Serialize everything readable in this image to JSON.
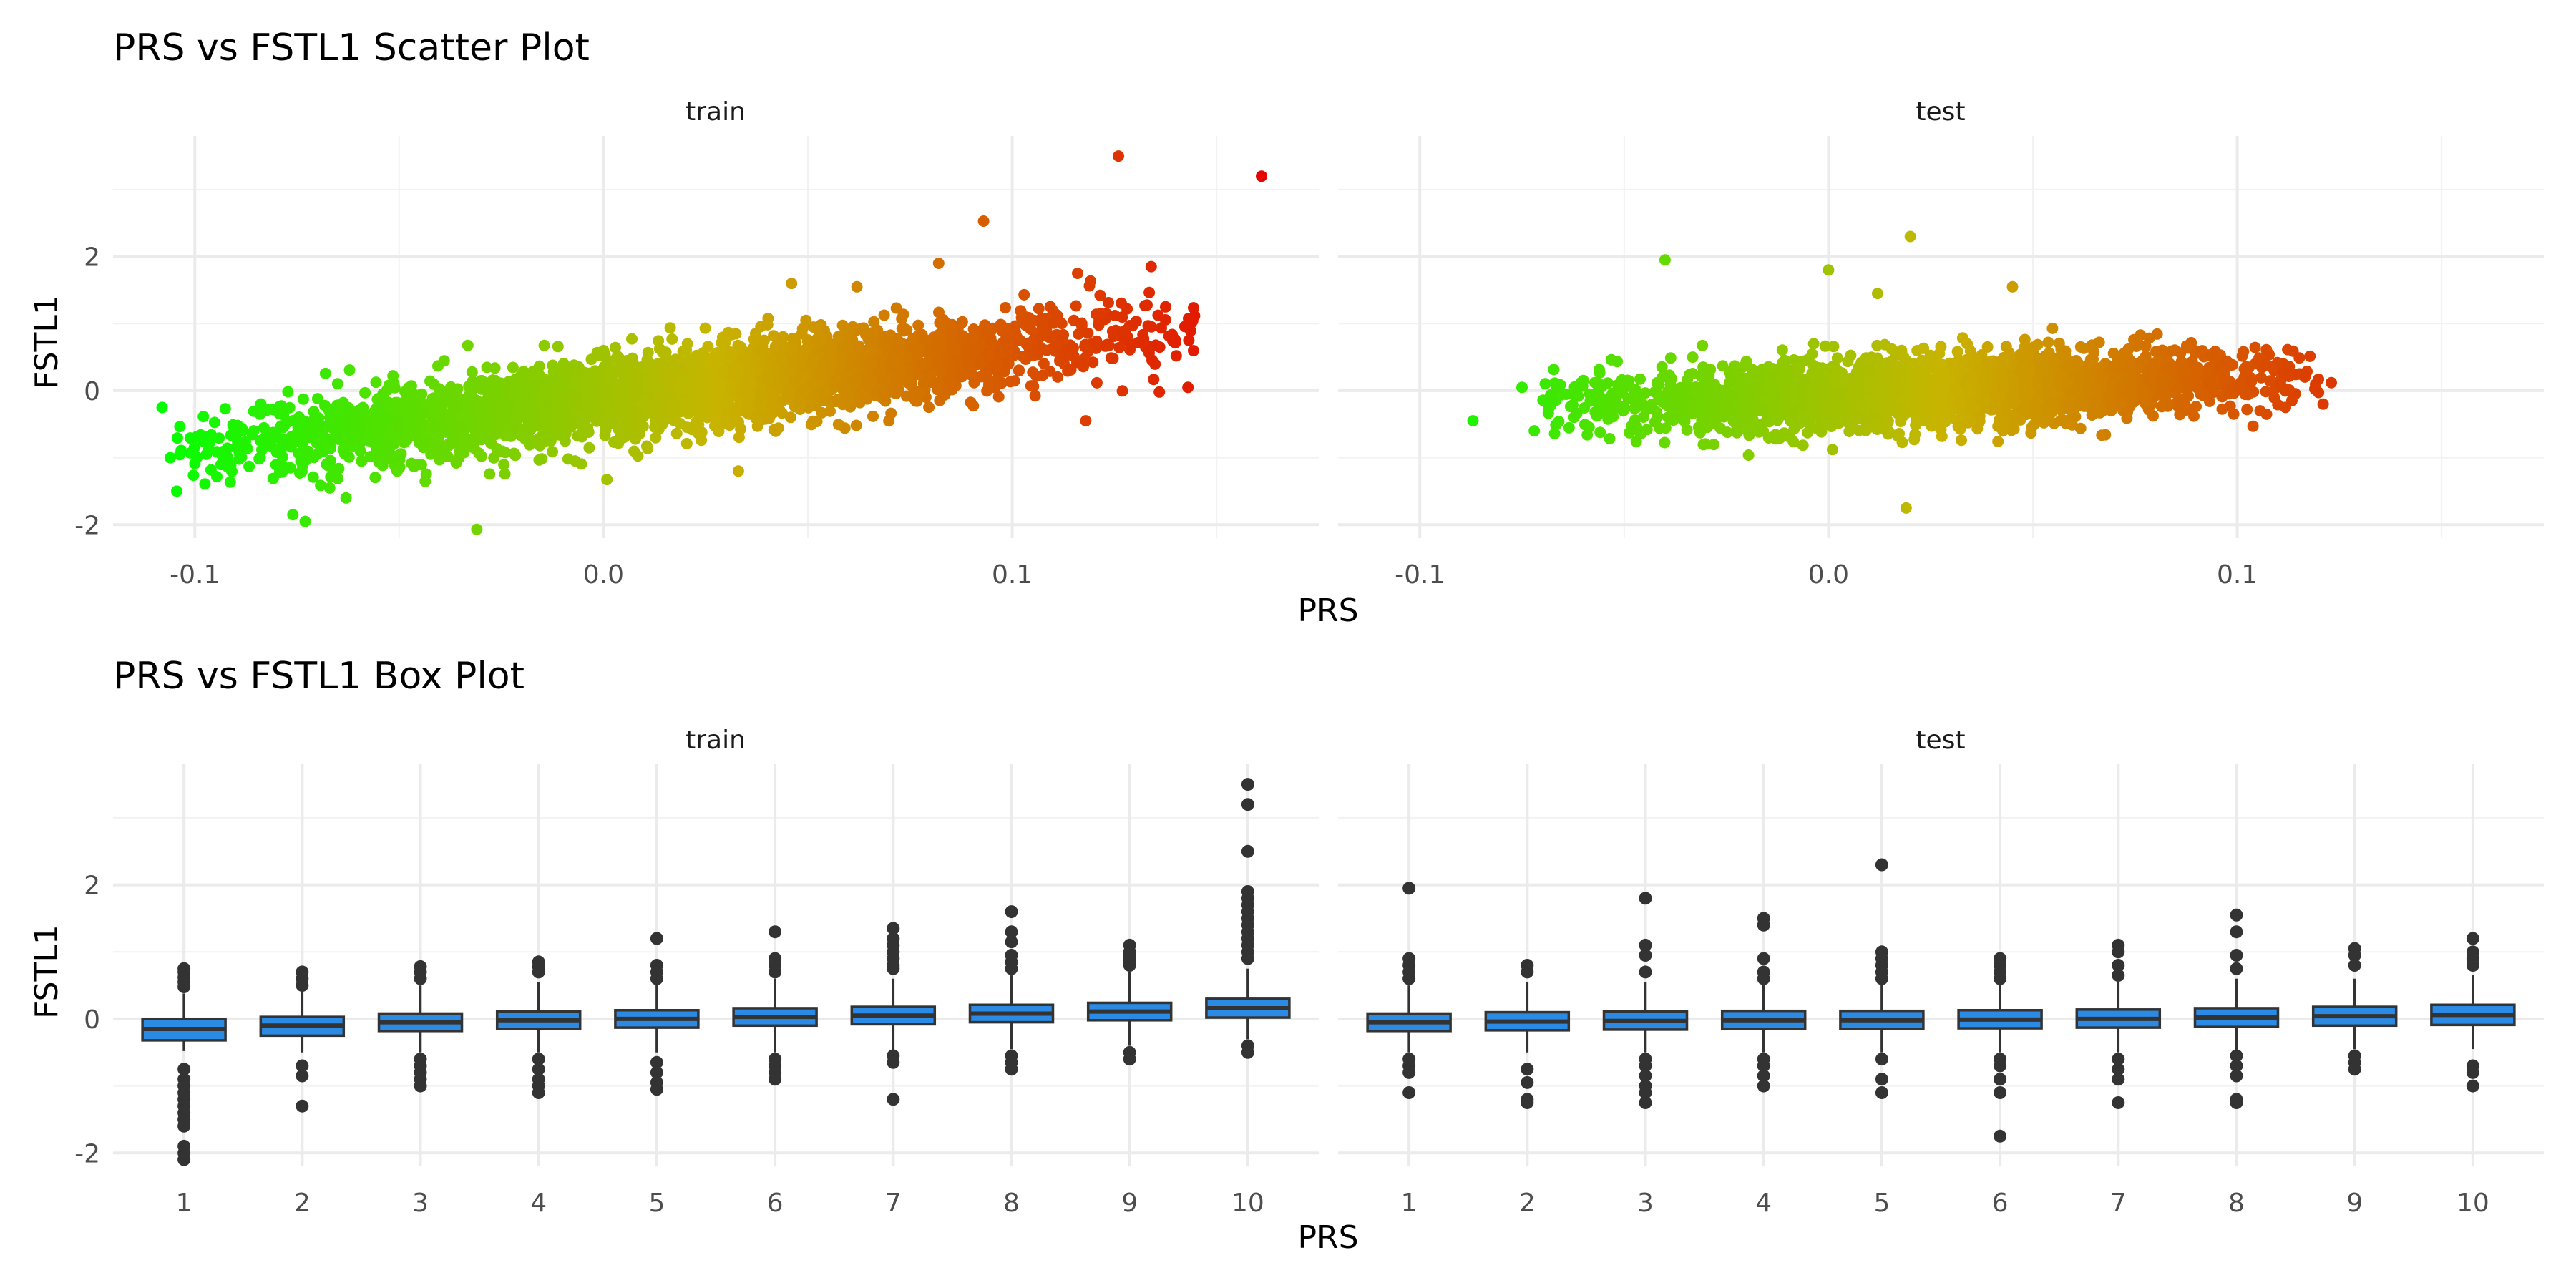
{
  "chart_data": [
    {
      "type": "scatter",
      "title": "PRS vs FSTL1 Scatter Plot",
      "xlabel": "PRS",
      "ylabel": "FSTL1",
      "xlim": [
        -0.12,
        0.175
      ],
      "ylim": [
        -2.2,
        3.8
      ],
      "x_ticks": [
        -0.1,
        0.0,
        0.1
      ],
      "x_tick_labels": [
        "-0.1",
        "0.0",
        "0.1"
      ],
      "y_ticks": [
        -2,
        0,
        2
      ],
      "y_tick_labels": [
        "-2",
        "0",
        "2"
      ],
      "color_scale": {
        "low": "#00ff00",
        "mid": "#c8b400",
        "high": "#e60000",
        "variable": "PRS"
      },
      "grid": true,
      "legend": "none",
      "facets": [
        {
          "label": "train",
          "trend": {
            "slope": 7.6,
            "intercept": -0.12,
            "noise": 0.3
          },
          "x_range": [
            -0.105,
            0.145
          ],
          "n_bulk": 3200,
          "points": [
            {
              "x": -0.108,
              "y": -0.25
            },
            {
              "x": -0.106,
              "y": -1.0
            },
            {
              "x": -0.076,
              "y": -1.85
            },
            {
              "x": -0.073,
              "y": -1.95
            },
            {
              "x": -0.067,
              "y": -1.45
            },
            {
              "x": -0.063,
              "y": -1.6
            },
            {
              "x": -0.031,
              "y": -2.07
            },
            {
              "x": 0.093,
              "y": 2.53
            },
            {
              "x": 0.126,
              "y": 3.5
            },
            {
              "x": 0.161,
              "y": 3.2
            },
            {
              "x": 0.134,
              "y": 1.85
            },
            {
              "x": 0.143,
              "y": 0.05
            },
            {
              "x": 0.136,
              "y": -0.02
            },
            {
              "x": 0.118,
              "y": -0.45
            },
            {
              "x": 0.082,
              "y": 1.9
            },
            {
              "x": 0.116,
              "y": 1.75
            },
            {
              "x": 0.046,
              "y": 1.6
            },
            {
              "x": 0.062,
              "y": 1.55
            },
            {
              "x": 0.033,
              "y": -1.2
            }
          ]
        },
        {
          "label": "test",
          "trend": {
            "slope": 2.2,
            "intercept": -0.05,
            "noise": 0.26
          },
          "x_range": [
            -0.07,
            0.12
          ],
          "n_bulk": 2600,
          "points": [
            {
              "x": -0.087,
              "y": -0.45
            },
            {
              "x": -0.04,
              "y": 1.95
            },
            {
              "x": 0.02,
              "y": 2.3
            },
            {
              "x": 0.0,
              "y": 1.8
            },
            {
              "x": 0.019,
              "y": -1.75
            },
            {
              "x": 0.123,
              "y": 0.12
            },
            {
              "x": 0.121,
              "y": -0.2
            },
            {
              "x": -0.072,
              "y": -0.6
            },
            {
              "x": -0.075,
              "y": 0.05
            },
            {
              "x": 0.045,
              "y": 1.55
            },
            {
              "x": 0.012,
              "y": 1.45
            }
          ]
        }
      ]
    },
    {
      "type": "box",
      "title": "PRS vs FSTL1 Box Plot",
      "xlabel": "PRS",
      "ylabel": "FSTL1",
      "categories": [
        "1",
        "2",
        "3",
        "4",
        "5",
        "6",
        "7",
        "8",
        "9",
        "10"
      ],
      "ylim": [
        -2.2,
        3.8
      ],
      "y_ticks": [
        -2,
        0,
        2
      ],
      "y_tick_labels": [
        "-2",
        "0",
        "2"
      ],
      "box_color": "#2b8ae3",
      "grid": true,
      "facets": [
        {
          "label": "train",
          "boxes": [
            {
              "q1": -0.32,
              "median": -0.15,
              "q3": 0.0,
              "low": -0.48,
              "high": 0.38,
              "outliers": [
                0.75,
                0.7,
                0.62,
                0.55,
                0.48,
                -0.75,
                -0.9,
                -1.0,
                -1.1,
                -1.2,
                -1.3,
                -1.4,
                -1.5,
                -1.6,
                -1.9,
                -2.0,
                -2.1
              ]
            },
            {
              "q1": -0.25,
              "median": -0.1,
              "q3": 0.03,
              "low": -0.5,
              "high": 0.45,
              "outliers": [
                0.7,
                0.6,
                0.5,
                -0.7,
                -0.85,
                -1.3
              ]
            },
            {
              "q1": -0.18,
              "median": -0.05,
              "q3": 0.08,
              "low": -0.5,
              "high": 0.5,
              "outliers": [
                0.78,
                0.7,
                0.6,
                -0.6,
                -0.7,
                -0.8,
                -0.9,
                -1.0
              ]
            },
            {
              "q1": -0.15,
              "median": -0.02,
              "q3": 0.11,
              "low": -0.5,
              "high": 0.55,
              "outliers": [
                0.85,
                0.78,
                0.7,
                -0.6,
                -0.75,
                -0.9,
                -1.0,
                -1.1
              ]
            },
            {
              "q1": -0.13,
              "median": 0.0,
              "q3": 0.13,
              "low": -0.5,
              "high": 0.55,
              "outliers": [
                1.2,
                0.8,
                0.7,
                0.6,
                -0.65,
                -0.8,
                -0.95,
                -1.05
              ]
            },
            {
              "q1": -0.1,
              "median": 0.03,
              "q3": 0.16,
              "low": -0.5,
              "high": 0.6,
              "outliers": [
                1.3,
                0.9,
                0.8,
                0.7,
                -0.6,
                -0.7,
                -0.8,
                -0.9
              ]
            },
            {
              "q1": -0.08,
              "median": 0.05,
              "q3": 0.18,
              "low": -0.5,
              "high": 0.6,
              "outliers": [
                1.35,
                1.2,
                1.1,
                1.0,
                0.9,
                0.8,
                0.75,
                -0.55,
                -0.65,
                -1.2
              ]
            },
            {
              "q1": -0.05,
              "median": 0.08,
              "q3": 0.21,
              "low": -0.45,
              "high": 0.65,
              "outliers": [
                1.6,
                1.3,
                1.15,
                0.95,
                0.85,
                0.75,
                -0.55,
                -0.65,
                -0.75
              ]
            },
            {
              "q1": -0.02,
              "median": 0.11,
              "q3": 0.24,
              "low": -0.4,
              "high": 0.7,
              "outliers": [
                1.1,
                1.0,
                0.95,
                0.9,
                0.85,
                0.8,
                -0.5,
                -0.6
              ]
            },
            {
              "q1": 0.02,
              "median": 0.16,
              "q3": 0.3,
              "low": -0.3,
              "high": 0.75,
              "outliers": [
                3.5,
                3.2,
                2.5,
                1.9,
                1.8,
                1.7,
                1.6,
                1.5,
                1.4,
                1.3,
                1.2,
                1.1,
                1.0,
                0.9,
                -0.4,
                -0.5
              ]
            }
          ]
        },
        {
          "label": "test",
          "boxes": [
            {
              "q1": -0.18,
              "median": -0.05,
              "q3": 0.08,
              "low": -0.5,
              "high": 0.5,
              "outliers": [
                1.95,
                0.9,
                0.8,
                0.7,
                0.6,
                -0.6,
                -0.7,
                -0.8,
                -1.1
              ]
            },
            {
              "q1": -0.17,
              "median": -0.04,
              "q3": 0.1,
              "low": -0.5,
              "high": 0.55,
              "outliers": [
                0.8,
                0.7,
                -0.75,
                -0.95,
                -1.2,
                -1.25
              ]
            },
            {
              "q1": -0.16,
              "median": -0.03,
              "q3": 0.11,
              "low": -0.5,
              "high": 0.55,
              "outliers": [
                1.8,
                1.1,
                0.95,
                0.7,
                -0.6,
                -0.7,
                -0.85,
                -1.0,
                -1.1,
                -1.25
              ]
            },
            {
              "q1": -0.15,
              "median": -0.02,
              "q3": 0.12,
              "low": -0.5,
              "high": 0.55,
              "outliers": [
                1.5,
                1.4,
                0.9,
                0.7,
                0.6,
                -0.6,
                -0.7,
                -0.85,
                -1.0
              ]
            },
            {
              "q1": -0.15,
              "median": -0.02,
              "q3": 0.12,
              "low": -0.5,
              "high": 0.55,
              "outliers": [
                2.3,
                1.0,
                0.9,
                0.8,
                0.7,
                0.6,
                -0.6,
                -0.9,
                -1.1
              ]
            },
            {
              "q1": -0.14,
              "median": -0.01,
              "q3": 0.13,
              "low": -0.5,
              "high": 0.55,
              "outliers": [
                0.9,
                0.8,
                0.7,
                0.6,
                -0.6,
                -0.7,
                -0.9,
                -1.1,
                -1.75
              ]
            },
            {
              "q1": -0.13,
              "median": 0.0,
              "q3": 0.14,
              "low": -0.5,
              "high": 0.55,
              "outliers": [
                1.1,
                1.0,
                0.8,
                0.65,
                -0.6,
                -0.75,
                -0.9,
                -1.25
              ]
            },
            {
              "q1": -0.12,
              "median": 0.02,
              "q3": 0.16,
              "low": -0.5,
              "high": 0.6,
              "outliers": [
                1.55,
                1.3,
                0.95,
                0.75,
                -0.55,
                -0.7,
                -0.85,
                -1.2,
                -1.25
              ]
            },
            {
              "q1": -0.1,
              "median": 0.04,
              "q3": 0.18,
              "low": -0.45,
              "high": 0.6,
              "outliers": [
                1.05,
                0.95,
                0.8,
                -0.55,
                -0.65,
                -0.75
              ]
            },
            {
              "q1": -0.09,
              "median": 0.06,
              "q3": 0.21,
              "low": -0.45,
              "high": 0.65,
              "outliers": [
                1.2,
                1.0,
                0.9,
                0.8,
                -0.7,
                -0.8,
                -1.0
              ]
            }
          ]
        }
      ]
    }
  ]
}
